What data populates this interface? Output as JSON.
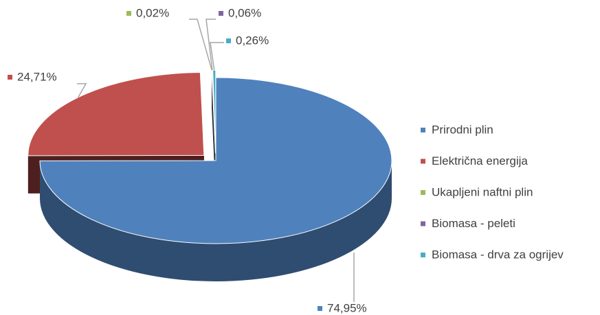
{
  "chart_data": {
    "type": "pie3d",
    "categories": [
      "Prirodni plin",
      "Električna energija",
      "Ukapljeni naftni plin",
      "Biomasa - peleti",
      "Biomasa - drva za ogrijev"
    ],
    "values": [
      74.95,
      24.71,
      0.02,
      0.06,
      0.26
    ],
    "value_labels": [
      "74,95%",
      "24,71%",
      "0,02%",
      "0,06%",
      "0,26%"
    ],
    "colors": [
      "#4f81bd",
      "#c0504d",
      "#9bbb59",
      "#8064a2",
      "#4bacc6"
    ],
    "legend": "right"
  }
}
